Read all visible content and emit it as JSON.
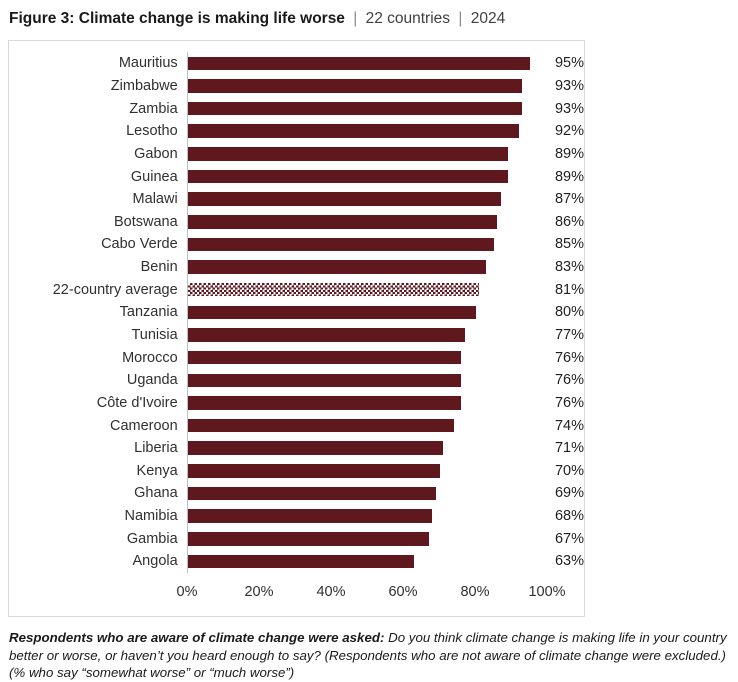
{
  "header": {
    "title": "Figure 3: Climate change is making life worse",
    "separator": "|",
    "scope": "22 countries",
    "year": "2024"
  },
  "chart_data": {
    "type": "bar",
    "orientation": "horizontal",
    "title": "Figure 3: Climate change is making life worse | 22 countries | 2024",
    "xlabel": "",
    "ylabel": "",
    "xlim": [
      0,
      100
    ],
    "x_ticks": [
      "0%",
      "20%",
      "40%",
      "60%",
      "80%",
      "100%"
    ],
    "grid": false,
    "legend": false,
    "bar_color": "#5E181E",
    "average_bar_pattern": "checkerboard",
    "categories": [
      "Mauritius",
      "Zimbabwe",
      "Zambia",
      "Lesotho",
      "Gabon",
      "Guinea",
      "Malawi",
      "Botswana",
      "Cabo Verde",
      "Benin",
      "22-country average",
      "Tanzania",
      "Tunisia",
      "Morocco",
      "Uganda",
      "Côte d'Ivoire",
      "Cameroon",
      "Liberia",
      "Kenya",
      "Ghana",
      "Namibia",
      "Gambia",
      "Angola"
    ],
    "values": [
      95,
      93,
      93,
      92,
      89,
      89,
      87,
      86,
      85,
      83,
      81,
      80,
      77,
      76,
      76,
      76,
      74,
      71,
      70,
      69,
      68,
      67,
      63
    ],
    "rows": [
      {
        "category": "Mauritius",
        "value": 95,
        "display": "95%",
        "is_average": false
      },
      {
        "category": "Zimbabwe",
        "value": 93,
        "display": "93%",
        "is_average": false
      },
      {
        "category": "Zambia",
        "value": 93,
        "display": "93%",
        "is_average": false
      },
      {
        "category": "Lesotho",
        "value": 92,
        "display": "92%",
        "is_average": false
      },
      {
        "category": "Gabon",
        "value": 89,
        "display": "89%",
        "is_average": false
      },
      {
        "category": "Guinea",
        "value": 89,
        "display": "89%",
        "is_average": false
      },
      {
        "category": "Malawi",
        "value": 87,
        "display": "87%",
        "is_average": false
      },
      {
        "category": "Botswana",
        "value": 86,
        "display": "86%",
        "is_average": false
      },
      {
        "category": "Cabo Verde",
        "value": 85,
        "display": "85%",
        "is_average": false
      },
      {
        "category": "Benin",
        "value": 83,
        "display": "83%",
        "is_average": false
      },
      {
        "category": "22-country average",
        "value": 81,
        "display": "81%",
        "is_average": true
      },
      {
        "category": "Tanzania",
        "value": 80,
        "display": "80%",
        "is_average": false
      },
      {
        "category": "Tunisia",
        "value": 77,
        "display": "77%",
        "is_average": false
      },
      {
        "category": "Morocco",
        "value": 76,
        "display": "76%",
        "is_average": false
      },
      {
        "category": "Uganda",
        "value": 76,
        "display": "76%",
        "is_average": false
      },
      {
        "category": "Côte d'Ivoire",
        "value": 76,
        "display": "76%",
        "is_average": false
      },
      {
        "category": "Cameroon",
        "value": 74,
        "display": "74%",
        "is_average": false
      },
      {
        "category": "Liberia",
        "value": 71,
        "display": "71%",
        "is_average": false
      },
      {
        "category": "Kenya",
        "value": 70,
        "display": "70%",
        "is_average": false
      },
      {
        "category": "Ghana",
        "value": 69,
        "display": "69%",
        "is_average": false
      },
      {
        "category": "Namibia",
        "value": 68,
        "display": "68%",
        "is_average": false
      },
      {
        "category": "Gambia",
        "value": 67,
        "display": "67%",
        "is_average": false
      },
      {
        "category": "Angola",
        "value": 63,
        "display": "63%",
        "is_average": false
      }
    ]
  },
  "footnote": {
    "bold": "Respondents who are aware of climate change were asked:",
    "regular": "Do you think climate change is making life in your country better or worse, or haven’t you heard enough to say? (Respondents who are not aware of climate change were excluded.) (% who say “somewhat worse” or “much worse”)"
  }
}
